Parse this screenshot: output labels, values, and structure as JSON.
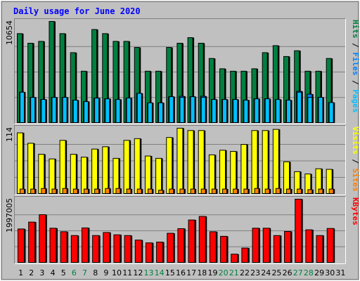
{
  "chart_data": {
    "type": "bar",
    "title": "Daily usage for June 2020",
    "colors": {
      "background": "#c0c0c0",
      "plot_bg": "#c0c0c0",
      "border_dark": "#808080",
      "border_light": "#ffffff",
      "grid": "#808080",
      "title": "#0000ff",
      "hits": "#008040",
      "files": "#0080ff",
      "pages": "#00c0ff",
      "visits": "#ffff00",
      "sites": "#ff8000",
      "kbytes": "#ff0000",
      "weekend": "#008040",
      "weekday": "#000000",
      "highlight": "#0000ff"
    },
    "days": [
      "1",
      "2",
      "3",
      "4",
      "5",
      "6",
      "7",
      "8",
      "9",
      "10",
      "11",
      "12",
      "13",
      "14",
      "15",
      "16",
      "17",
      "18",
      "19",
      "20",
      "21",
      "22",
      "23",
      "24",
      "25",
      "26",
      "27",
      "28",
      "29",
      "30",
      "31"
    ],
    "weekend_days": [
      6,
      7,
      13,
      14,
      20,
      21,
      27,
      28
    ],
    "panels": [
      {
        "id": "hits",
        "max_label": "10654",
        "ymax": 10654,
        "side_labels": [
          {
            "text": "Hits",
            "color": "#008040"
          },
          {
            "text": " / ",
            "color": "#000000"
          },
          {
            "text": "Files",
            "color": "#0080ff"
          },
          {
            "text": " / ",
            "color": "#000000"
          },
          {
            "text": "Pages",
            "color": "#00c0ff"
          }
        ],
        "series": [
          {
            "name": "Hits",
            "values": [
              9380,
              8376,
              8568,
              10654,
              9380,
              7388,
              5450,
              9810,
              9380,
              8568,
              8568,
              7932,
              5450,
              5450,
              7932,
              8376,
              8960,
              8376,
              6780,
              5704,
              5450,
              5450,
              5704,
              7388,
              8122,
              6986,
              7588,
              5450,
              5450,
              6780,
              0
            ]
          },
          {
            "name": "Files",
            "values": [
              3250,
              2710,
              2490,
              2710,
              2710,
              2420,
              2270,
              2640,
              2560,
              2490,
              2640,
              3130,
              2140,
              2140,
              2780,
              2830,
              2780,
              2830,
              2490,
              2490,
              2490,
              2420,
              2560,
              2560,
              2490,
              2420,
              3350,
              3040,
              2710,
              2170,
              0
            ]
          },
          {
            "name": "Pages",
            "values": [
              3250,
              2710,
              2490,
              2710,
              2710,
              2420,
              2270,
              2640,
              2560,
              2490,
              2640,
              3130,
              2140,
              2140,
              2780,
              2710,
              2780,
              2710,
              2490,
              2490,
              2490,
              2420,
              2560,
              2560,
              2490,
              2420,
              3250,
              2710,
              2710,
              2170,
              0
            ]
          }
        ]
      },
      {
        "id": "visits",
        "max_label": "114",
        "ymax": 114,
        "side_labels": [
          {
            "text": "Visits",
            "color": "#ffff00"
          },
          {
            "text": " / ",
            "color": "#000000"
          },
          {
            "text": "Sites",
            "color": "#ff8000"
          }
        ],
        "series": [
          {
            "name": "Visits",
            "values": [
              106,
              88,
              69,
              61,
              93,
              69,
              64,
              78,
              82,
              62,
              93,
              96,
              66,
              62,
              98,
              114,
              110,
              110,
              68,
              76,
              74,
              86,
              110,
              110,
              112,
              56,
              39,
              35,
              44,
              43,
              0
            ]
          },
          {
            "name": "Sites",
            "values": [
              9,
              9,
              10,
              9,
              10,
              9,
              9,
              9,
              10,
              10,
              9,
              9,
              9,
              7,
              9,
              9,
              9,
              9,
              9,
              9,
              9,
              9,
              10,
              9,
              10,
              9,
              9,
              8,
              9,
              9,
              0
            ]
          }
        ]
      },
      {
        "id": "kbytes",
        "max_label": "1997005",
        "ymax": 1997005,
        "side_labels": [
          {
            "text": "KBytes",
            "color": "#ff0000"
          }
        ],
        "series": [
          {
            "name": "KBytes",
            "values": [
              1066000,
              1281000,
              1512000,
              1090000,
              979000,
              861000,
              1099000,
              861000,
              956000,
              884000,
              861000,
              719000,
              632000,
              656000,
              932000,
              1076000,
              1347000,
              1458000,
              979000,
              837000,
              279000,
              469000,
              1090000,
              1090000,
              860000,
              988000,
              1997005,
              1040000,
              861000,
              1082000,
              0
            ]
          }
        ]
      }
    ]
  }
}
